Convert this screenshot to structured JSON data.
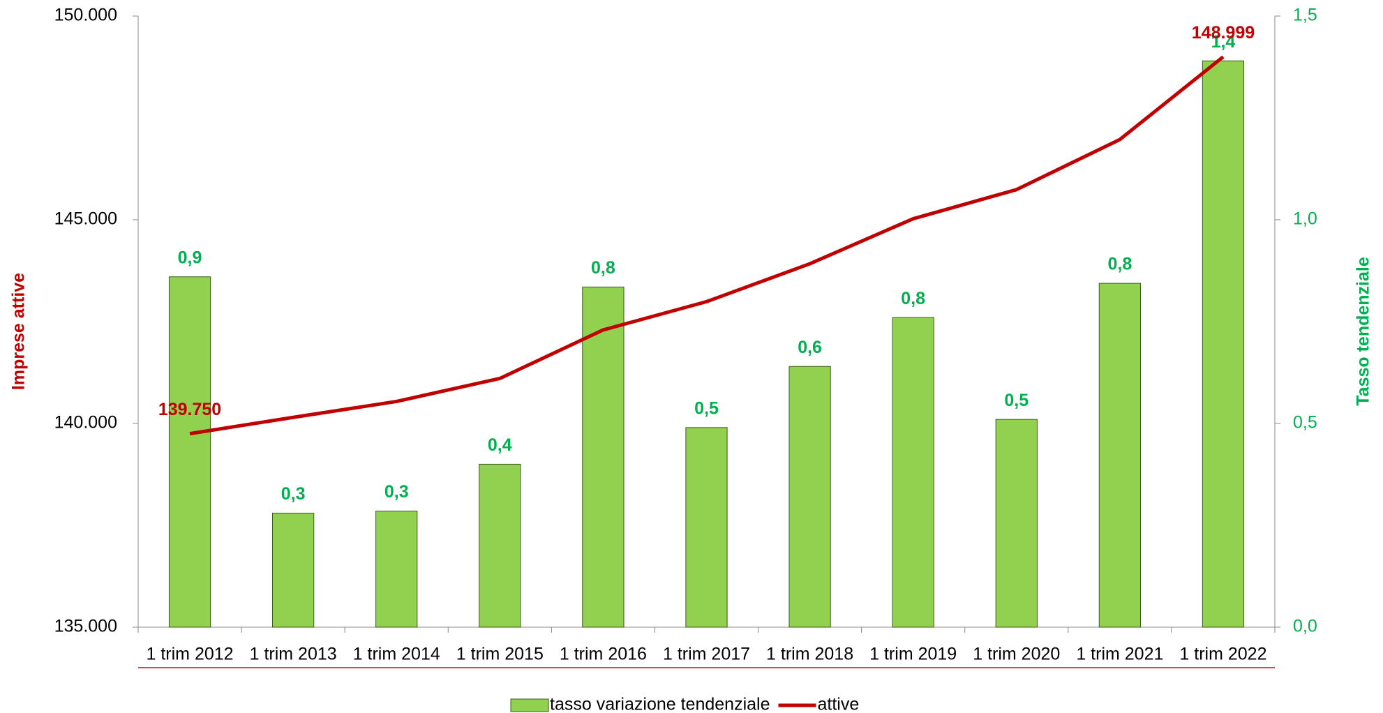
{
  "chart_data": {
    "type": "bar-line",
    "categories": [
      "1 trim 2012",
      "1 trim 2013",
      "1 trim 2014",
      "1 trim 2015",
      "1 trim 2016",
      "1 trim 2017",
      "1 trim 2018",
      "1 trim 2019",
      "1 trim 2020",
      "1 trim 2021",
      "1 trim 2022"
    ],
    "y_label": "Imprese attive",
    "y2_label": "Tasso tendenziale",
    "ylim": [
      135000,
      150000
    ],
    "yticks": [
      {
        "value": 135000,
        "label": "135.000"
      },
      {
        "value": 140000,
        "label": "140.000"
      },
      {
        "value": 145000,
        "label": "145.000"
      },
      {
        "value": 150000,
        "label": "150.000"
      }
    ],
    "y2lim": [
      0,
      1.5
    ],
    "y2ticks": [
      {
        "value": 0,
        "label": "0,0"
      },
      {
        "value": 0.5,
        "label": "0,5"
      },
      {
        "value": 1,
        "label": "1,0"
      },
      {
        "value": 1.5,
        "label": "1,5"
      }
    ],
    "series": [
      {
        "name": "tasso variazione tendenziale",
        "type": "bar",
        "axis": "y2",
        "color": "#92d050",
        "label_color": "#00b050",
        "values": [
          0.86,
          0.28,
          0.285,
          0.4,
          0.835,
          0.49,
          0.64,
          0.76,
          0.51,
          0.844,
          1.39
        ],
        "value_labels": [
          "0,9",
          "0,3",
          "0,3",
          "0,4",
          "0,8",
          "0,5",
          "0,6",
          "0,8",
          "0,5",
          "0,8",
          "1,4"
        ]
      },
      {
        "name": "attive",
        "type": "line",
        "color": "#c00000",
        "values": [
          139750,
          140150,
          140540,
          141105,
          142296,
          142990,
          143920,
          145025,
          145740,
          146970,
          148999
        ],
        "value_labels": [
          "139.750",
          null,
          null,
          null,
          null,
          null,
          null,
          null,
          null,
          null,
          "148.999"
        ]
      }
    ]
  }
}
